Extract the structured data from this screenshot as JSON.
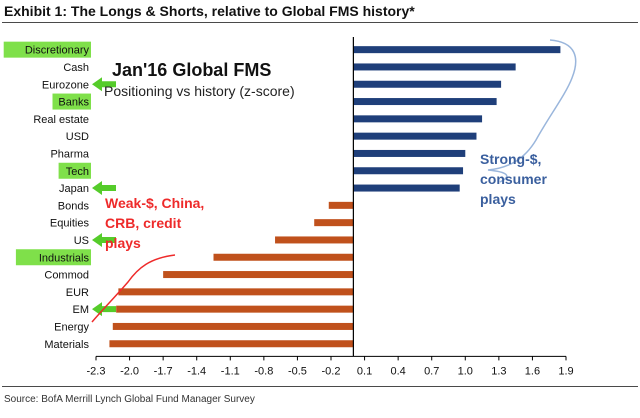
{
  "exhibit_title": "Exhibit 1: The Longs & Shorts, relative to Global FMS history*",
  "source": "Source: BofA Merrill Lynch Global Fund Manager Survey",
  "colors": {
    "long_bar": "#1f3f7a",
    "short_bar": "#c0511c",
    "highlight": "#7fe04a",
    "arrow": "#55cc2a",
    "blue_annotation": "#3a5f9e",
    "red_annotation": "#ee2a2a",
    "bracket_blue": "#9ab6dc",
    "bracket_red": "#ee2a2a"
  },
  "chart_data": {
    "type": "bar",
    "orientation": "horizontal",
    "title": "Jan'16 Global FMS",
    "subtitle": "Positioning vs history (z-score)",
    "categories": [
      "Discretionary",
      "Cash",
      "Eurozone",
      "Banks",
      "Real estate",
      "USD",
      "Pharma",
      "Tech",
      "Japan",
      "Bonds",
      "Equities",
      "US",
      "Industrials",
      "Commod",
      "EUR",
      "EM",
      "Energy",
      "Materials"
    ],
    "values": [
      1.85,
      1.45,
      1.32,
      1.28,
      1.15,
      1.1,
      1.0,
      0.98,
      0.95,
      -0.22,
      -0.35,
      -0.7,
      -1.25,
      -1.7,
      -2.1,
      -2.12,
      -2.15,
      -2.18
    ],
    "highlighted_categories": [
      "Discretionary",
      "Banks",
      "Tech",
      "Industrials"
    ],
    "arrow_categories": [
      "Eurozone",
      "Japan",
      "US",
      "EM"
    ],
    "xlim": [
      -2.3,
      1.9
    ],
    "xticks": [
      "-2.3",
      "-2.0",
      "-1.7",
      "-1.4",
      "-1.1",
      "-0.8",
      "-0.5",
      "-0.2",
      "0.1",
      "0.4",
      "0.7",
      "1.0",
      "1.3",
      "1.6",
      "1.9"
    ],
    "grid": false,
    "annotations": {
      "longs": [
        "Strong-$,",
        "consumer",
        "plays"
      ],
      "shorts": [
        "Weak-$, China,",
        "CRB, credit",
        "plays"
      ]
    }
  }
}
